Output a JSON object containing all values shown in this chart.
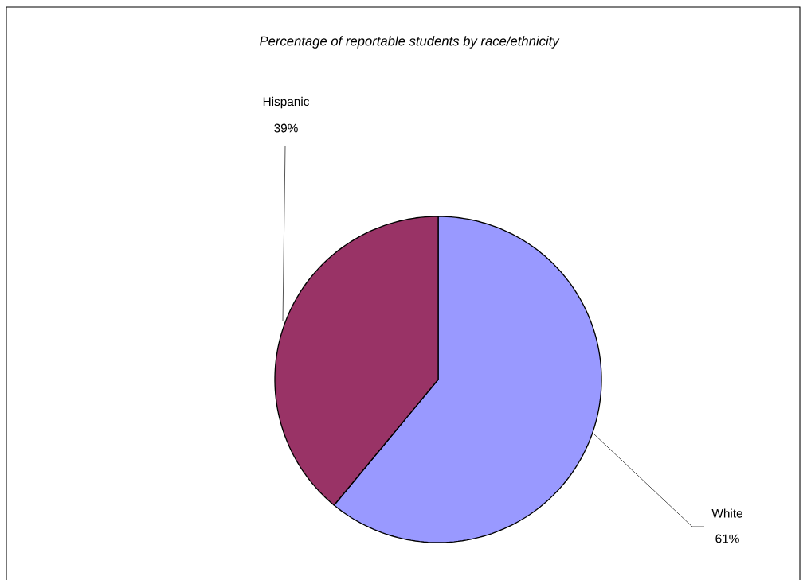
{
  "chart_data": {
    "type": "pie",
    "title": "*Percentage of reportable students by race/ethnicity*",
    "categories": [
      "White",
      "Hispanic"
    ],
    "values": [
      61,
      39
    ],
    "value_labels": [
      "61%",
      "39%"
    ],
    "colors": [
      "#9999ff",
      "#993366"
    ]
  }
}
